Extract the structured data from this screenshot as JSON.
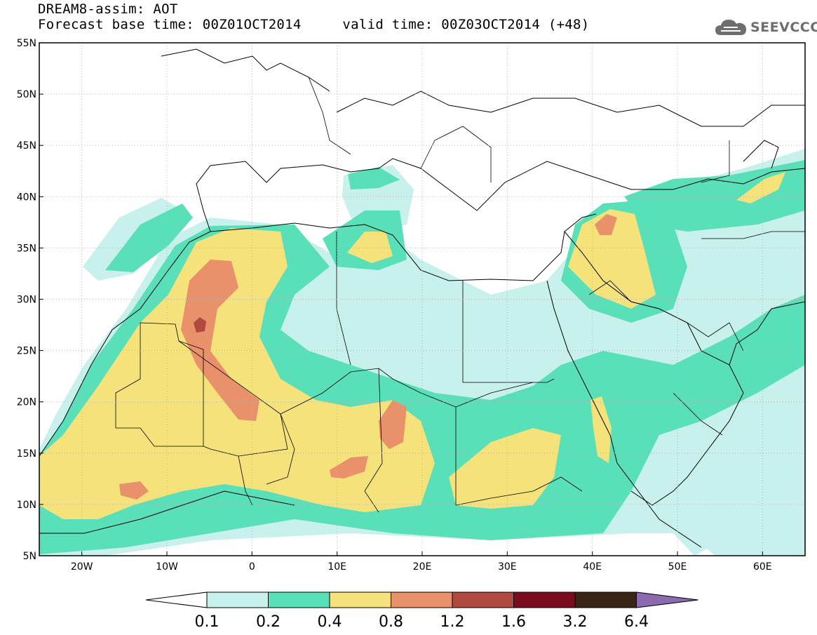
{
  "header": {
    "line1": "DREAM8-assim: AOT",
    "base_label": "Forecast base time: 00Z01OCT2014",
    "valid_label": "valid time: 00Z03OCT2014 (+48)"
  },
  "logo": {
    "text": "SEEVCCC",
    "icon": "cloud-icon",
    "color": "#6e6e6e"
  },
  "axes": {
    "lon_range": [
      -25,
      65
    ],
    "lat_range": [
      5,
      55
    ],
    "lat_ticks": [
      "5N",
      "10N",
      "15N",
      "20N",
      "25N",
      "30N",
      "35N",
      "40N",
      "45N",
      "50N",
      "55N"
    ],
    "lon_ticks": [
      "20W",
      "10W",
      "0",
      "10E",
      "20E",
      "30E",
      "40E",
      "50E",
      "60E"
    ]
  },
  "colorbar": {
    "levels": [
      "0.1",
      "0.2",
      "0.4",
      "0.8",
      "1.2",
      "1.6",
      "3.2",
      "6.4"
    ],
    "colors": [
      "#c8f0ec",
      "#5ae0b8",
      "#f5e27a",
      "#e8916a",
      "#b04a40",
      "#7a0c20",
      "#3a2415",
      "#8c6ab0"
    ],
    "under_color": "#ffffff"
  },
  "map_colors": {
    "land": "#ffffff",
    "border": "#000000",
    "grid": "#b4b4b4"
  }
}
